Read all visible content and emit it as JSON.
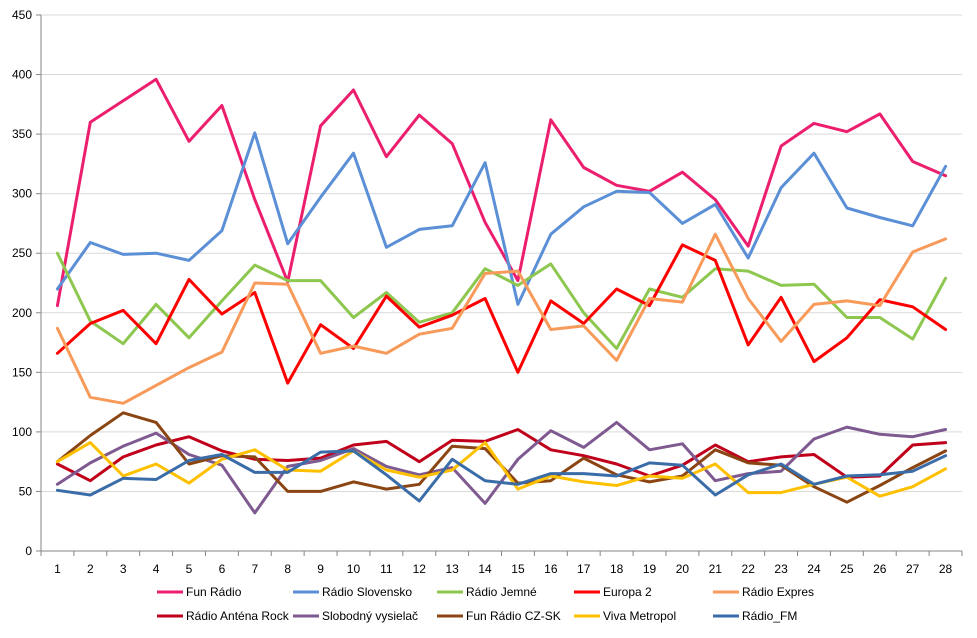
{
  "chart_data": {
    "type": "line",
    "title": "",
    "xlabel": "",
    "ylabel": "",
    "ylim": [
      0,
      450
    ],
    "yticks": [
      0,
      50,
      100,
      150,
      200,
      250,
      300,
      350,
      400,
      450
    ],
    "grid": true,
    "legend_position": "bottom",
    "x": [
      1,
      2,
      3,
      4,
      5,
      6,
      7,
      8,
      9,
      10,
      11,
      12,
      13,
      14,
      15,
      16,
      17,
      18,
      19,
      20,
      21,
      22,
      23,
      24,
      25,
      26,
      27,
      28
    ],
    "series": [
      {
        "name": "Fun Rádio",
        "color": "#ec1e6e",
        "values": [
          206,
          360,
          378,
          396,
          344,
          374,
          295,
          226,
          357,
          387,
          331,
          366,
          342,
          276,
          227,
          362,
          322,
          307,
          302,
          318,
          295,
          256,
          340,
          359,
          352,
          367,
          327,
          315
        ]
      },
      {
        "name": "Rádio Slovensko",
        "color": "#5b8fd6",
        "values": [
          220,
          259,
          249,
          250,
          244,
          269,
          351,
          258,
          297,
          334,
          255,
          270,
          273,
          326,
          207,
          266,
          289,
          302,
          301,
          275,
          291,
          246,
          305,
          334,
          288,
          280,
          273,
          323
        ]
      },
      {
        "name": "Rádio Jemné",
        "color": "#8ec74f",
        "values": [
          250,
          193,
          174,
          207,
          179,
          210,
          240,
          227,
          227,
          196,
          217,
          192,
          200,
          237,
          223,
          241,
          200,
          170,
          220,
          213,
          237,
          235,
          223,
          224,
          196,
          196,
          178,
          229
        ]
      },
      {
        "name": "Europa 2",
        "color": "#ff0000",
        "values": [
          166,
          191,
          202,
          174,
          228,
          199,
          217,
          141,
          190,
          170,
          214,
          188,
          198,
          212,
          150,
          210,
          191,
          220,
          206,
          257,
          244,
          173,
          213,
          159,
          179,
          211,
          205,
          186
        ]
      },
      {
        "name": "Rádio Expres",
        "color": "#f79a5a",
        "values": [
          187,
          129,
          124,
          139,
          154,
          167,
          225,
          224,
          166,
          172,
          166,
          182,
          187,
          233,
          235,
          186,
          189,
          160,
          212,
          209,
          266,
          212,
          176,
          207,
          210,
          206,
          251,
          262
        ]
      },
      {
        "name": "Rádio Anténa Rock",
        "color": "#c0001a",
        "values": [
          73,
          59,
          79,
          89,
          96,
          84,
          77,
          76,
          78,
          89,
          92,
          75,
          93,
          92,
          102,
          85,
          80,
          73,
          63,
          72,
          89,
          75,
          79,
          81,
          62,
          63,
          89,
          91
        ]
      },
      {
        "name": "Slobodný vysielač",
        "color": "#7e5a90",
        "values": [
          56,
          74,
          88,
          99,
          81,
          72,
          32,
          71,
          76,
          86,
          71,
          64,
          70,
          40,
          77,
          101,
          87,
          108,
          85,
          90,
          59,
          65,
          67,
          94,
          104,
          98,
          96,
          102
        ]
      },
      {
        "name": "Fun Rádio CZ-SK",
        "color": "#8b4513",
        "values": [
          75,
          97,
          116,
          108,
          73,
          80,
          79,
          50,
          50,
          58,
          52,
          56,
          88,
          86,
          57,
          59,
          78,
          64,
          58,
          63,
          85,
          74,
          72,
          54,
          41,
          55,
          70,
          84
        ]
      },
      {
        "name": "Viva Metropol",
        "color": "#ffc000",
        "values": [
          75,
          91,
          63,
          73,
          57,
          77,
          85,
          68,
          67,
          84,
          68,
          62,
          68,
          91,
          52,
          63,
          58,
          55,
          63,
          61,
          73,
          49,
          49,
          56,
          62,
          46,
          54,
          69
        ]
      },
      {
        "name": "Rádio_FM",
        "color": "#3a6ca8",
        "values": [
          51,
          47,
          61,
          60,
          76,
          81,
          66,
          66,
          83,
          84,
          64,
          42,
          77,
          59,
          56,
          65,
          65,
          63,
          74,
          72,
          47,
          64,
          73,
          56,
          63,
          64,
          67,
          80
        ]
      }
    ]
  }
}
